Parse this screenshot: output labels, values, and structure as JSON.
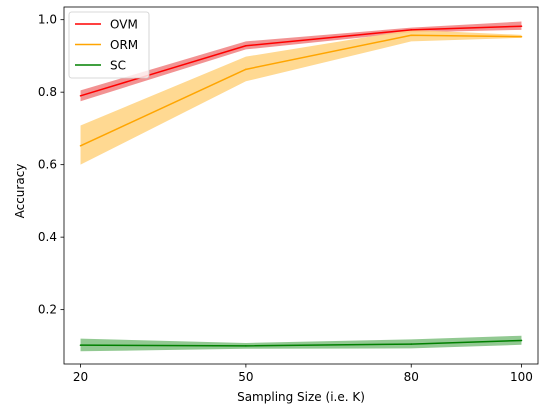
{
  "chart_data": {
    "type": "line",
    "title": "",
    "xlabel": "Sampling Size (i.e. K)",
    "ylabel": "Accuracy",
    "x": [
      20,
      50,
      80,
      100
    ],
    "x_tick_labels": [
      "20",
      "50",
      "80",
      "100"
    ],
    "xlim": [
      17,
      103
    ],
    "y_ticks": [
      0.2,
      0.4,
      0.6,
      0.8,
      1.0
    ],
    "y_tick_labels": [
      "0.2",
      "0.4",
      "0.6",
      "0.8",
      "1.0"
    ],
    "ylim": [
      0.05,
      1.035
    ],
    "grid": false,
    "legend_position": "top-left",
    "series": [
      {
        "name": "OVM",
        "color": "#ff0000",
        "band_color": "#f08080",
        "values": [
          0.79,
          0.928,
          0.972,
          0.982
        ],
        "lower": [
          0.775,
          0.918,
          0.965,
          0.972
        ],
        "upper": [
          0.805,
          0.94,
          0.978,
          0.995
        ]
      },
      {
        "name": "ORM",
        "color": "#ffa500",
        "band_color": "#ffd27f",
        "values": [
          0.652,
          0.863,
          0.957,
          0.953
        ],
        "lower": [
          0.6,
          0.83,
          0.94,
          0.95
        ],
        "upper": [
          0.708,
          0.898,
          0.972,
          0.958
        ]
      },
      {
        "name": "SC",
        "color": "#008000",
        "band_color": "#7fbf7f",
        "values": [
          0.102,
          0.1,
          0.105,
          0.115
        ],
        "lower": [
          0.085,
          0.092,
          0.093,
          0.103
        ],
        "upper": [
          0.12,
          0.108,
          0.118,
          0.128
        ]
      }
    ]
  }
}
